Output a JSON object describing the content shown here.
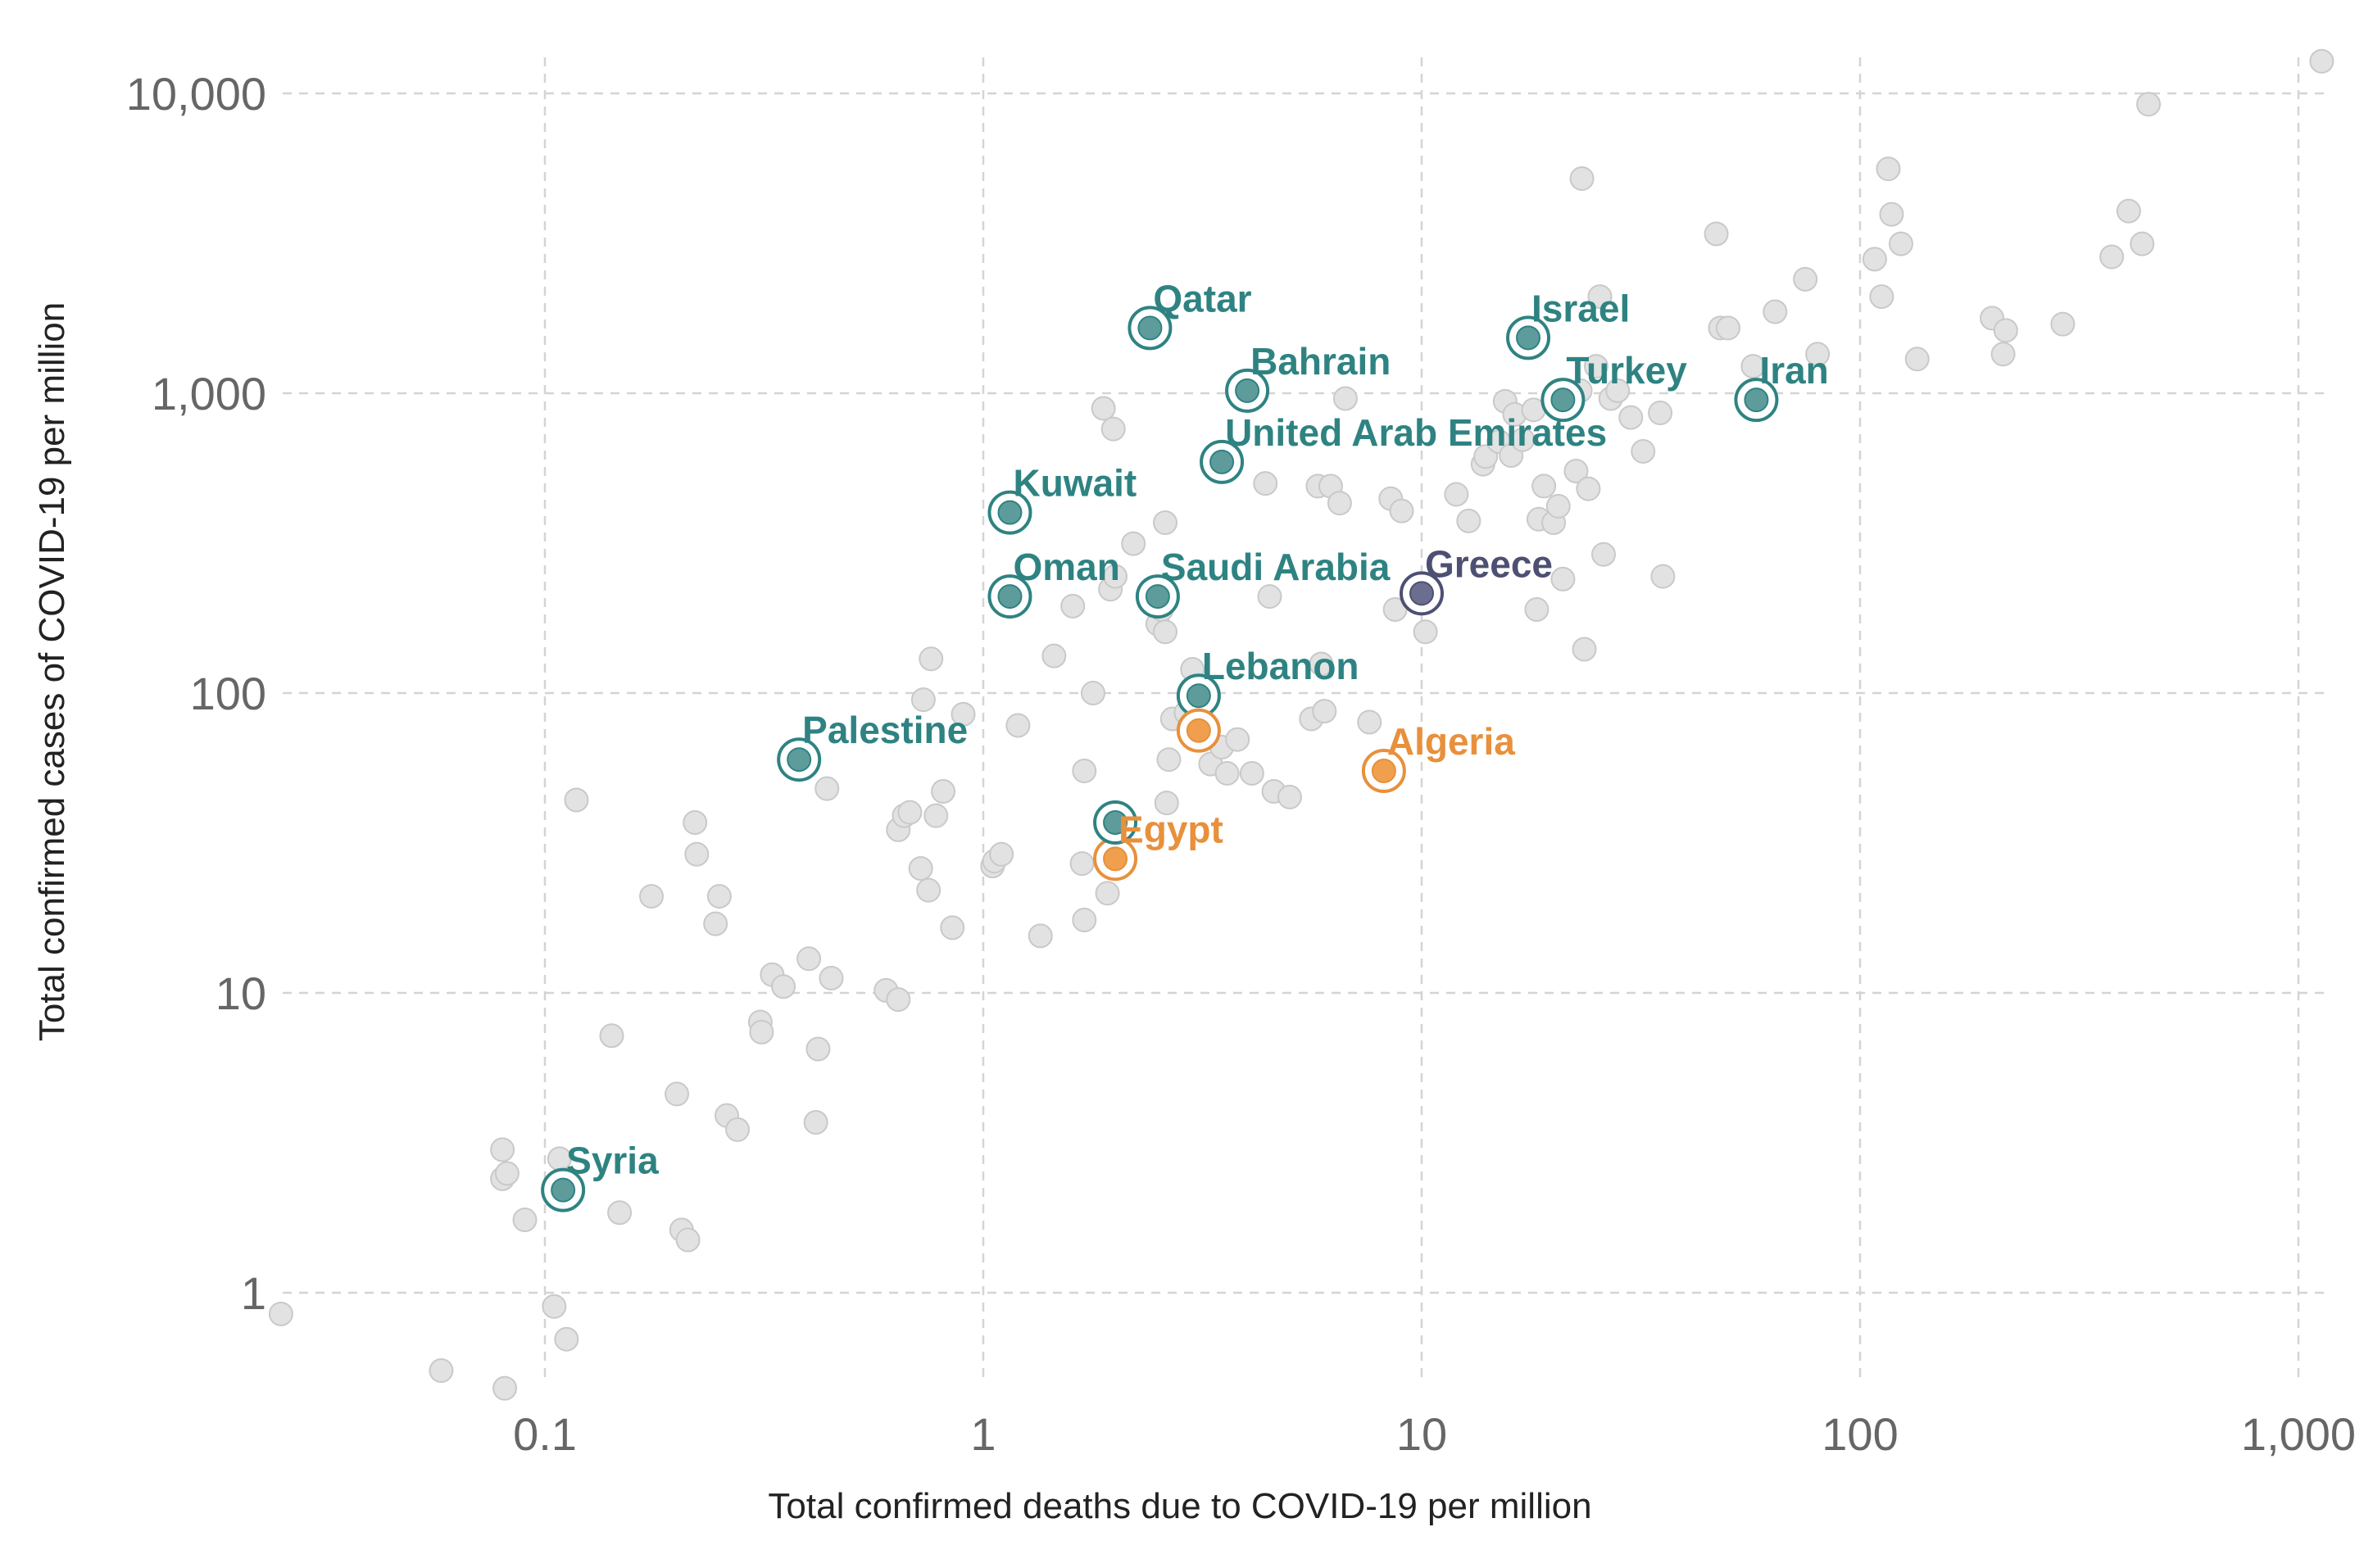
{
  "colors": {
    "mena": "#2e8382",
    "mena_fill": "#5d9c9b",
    "africa": "#e8903c",
    "africa_fill": "#ef9f4d",
    "europe": "#4d5072",
    "europe_fill": "#6b6e8e",
    "background_point": "#e2e2e2",
    "grid": "#d4d4d4"
  },
  "chart_data": {
    "type": "scatter",
    "title": "",
    "xlabel": "Total confirmed deaths due to COVID-19 per million",
    "ylabel": "Total confirmed cases of COVID-19 per million",
    "x_scale": "log",
    "y_scale": "log",
    "xlim": [
      0.025,
      1200
    ],
    "ylim": [
      0.45,
      14000
    ],
    "x_ticks": [
      0.1,
      1,
      10,
      100,
      1000
    ],
    "x_tick_labels": [
      "0.1",
      "1",
      "10",
      "100",
      "1,000"
    ],
    "y_ticks": [
      1,
      10,
      100,
      1000,
      10000
    ],
    "y_tick_labels": [
      "1",
      "10",
      "100",
      "1,000",
      "10,000"
    ],
    "grid": true,
    "highlighted": [
      {
        "label": "Qatar",
        "x": 2.4,
        "y": 1650,
        "group": "mena"
      },
      {
        "label": "Bahrain",
        "x": 4.0,
        "y": 1020,
        "group": "mena"
      },
      {
        "label": "Israel",
        "x": 17.5,
        "y": 1530,
        "group": "mena"
      },
      {
        "label": "Turkey",
        "x": 21,
        "y": 950,
        "group": "mena"
      },
      {
        "label": "Iran",
        "x": 58,
        "y": 950,
        "group": "mena"
      },
      {
        "label": "United Arab Emirates",
        "x": 3.5,
        "y": 590,
        "group": "mena"
      },
      {
        "label": "Kuwait",
        "x": 1.15,
        "y": 400,
        "group": "mena"
      },
      {
        "label": "Oman",
        "x": 1.15,
        "y": 210,
        "group": "mena"
      },
      {
        "label": "Saudi Arabia",
        "x": 2.5,
        "y": 210,
        "group": "mena"
      },
      {
        "label": "Greece",
        "x": 10,
        "y": 215,
        "group": "europe"
      },
      {
        "label": "Lebanon",
        "x": 3.1,
        "y": 98,
        "group": "mena"
      },
      {
        "label": "Palestine",
        "x": 0.38,
        "y": 60,
        "group": "mena"
      },
      {
        "label": "Algeria",
        "x": 8.2,
        "y": 55,
        "group": "africa"
      },
      {
        "label": "Egypt",
        "x": 2.0,
        "y": 28,
        "group": "africa"
      },
      {
        "label": "Syria",
        "x": 0.11,
        "y": 2.2,
        "group": "mena"
      },
      {
        "label": "",
        "x": 3.1,
        "y": 75,
        "group": "africa"
      },
      {
        "label": "",
        "x": 2.0,
        "y": 37,
        "group": "mena"
      }
    ],
    "background_points": [
      [
        0.025,
        0.85
      ],
      [
        0.058,
        0.55
      ],
      [
        0.081,
        0.48
      ],
      [
        0.08,
        3.0
      ],
      [
        0.08,
        2.4
      ],
      [
        0.082,
        2.5
      ],
      [
        0.09,
        1.75
      ],
      [
        0.105,
        0.9
      ],
      [
        0.108,
        2.8
      ],
      [
        0.112,
        0.7
      ],
      [
        0.118,
        44
      ],
      [
        0.142,
        7.2
      ],
      [
        0.148,
        1.85
      ],
      [
        0.175,
        21
      ],
      [
        0.2,
        4.6
      ],
      [
        0.205,
        1.62
      ],
      [
        0.212,
        1.5
      ],
      [
        0.22,
        37
      ],
      [
        0.222,
        29
      ],
      [
        0.245,
        17
      ],
      [
        0.25,
        21
      ],
      [
        0.26,
        3.9
      ],
      [
        0.275,
        3.5
      ],
      [
        0.31,
        8.0
      ],
      [
        0.312,
        7.4
      ],
      [
        0.33,
        11.5
      ],
      [
        0.35,
        10.5
      ],
      [
        0.4,
        13
      ],
      [
        0.415,
        3.7
      ],
      [
        0.42,
        6.5
      ],
      [
        0.44,
        48
      ],
      [
        0.45,
        11.2
      ],
      [
        0.6,
        10.2
      ],
      [
        0.64,
        9.5
      ],
      [
        0.64,
        35
      ],
      [
        0.66,
        39
      ],
      [
        0.68,
        40
      ],
      [
        0.72,
        26
      ],
      [
        0.73,
        95
      ],
      [
        0.75,
        22
      ],
      [
        0.76,
        130
      ],
      [
        0.78,
        39
      ],
      [
        0.81,
        47
      ],
      [
        0.85,
        16.5
      ],
      [
        0.9,
        85
      ],
      [
        1.05,
        26.5
      ],
      [
        1.06,
        27.5
      ],
      [
        1.1,
        29
      ],
      [
        1.2,
        78
      ],
      [
        1.35,
        15.5
      ],
      [
        1.45,
        133
      ],
      [
        1.6,
        195
      ],
      [
        1.68,
        27
      ],
      [
        1.7,
        17.5
      ],
      [
        1.7,
        55
      ],
      [
        1.78,
        100
      ],
      [
        1.88,
        890
      ],
      [
        1.92,
        21.5
      ],
      [
        1.95,
        222
      ],
      [
        1.98,
        760
      ],
      [
        2.0,
        245
      ],
      [
        2.2,
        315
      ],
      [
        2.45,
        225
      ],
      [
        2.5,
        170
      ],
      [
        2.55,
        190
      ],
      [
        2.6,
        160
      ],
      [
        2.6,
        370
      ],
      [
        2.62,
        43
      ],
      [
        2.65,
        60
      ],
      [
        2.7,
        82
      ],
      [
        2.9,
        86
      ],
      [
        3.0,
        120
      ],
      [
        3.3,
        58
      ],
      [
        3.5,
        66
      ],
      [
        3.6,
        54
      ],
      [
        3.8,
        70
      ],
      [
        4.1,
        54
      ],
      [
        4.4,
        500
      ],
      [
        4.5,
        210
      ],
      [
        4.6,
        47
      ],
      [
        5.0,
        45
      ],
      [
        5.6,
        82
      ],
      [
        5.8,
        490
      ],
      [
        5.9,
        125
      ],
      [
        6.0,
        87
      ],
      [
        6.2,
        490
      ],
      [
        6.5,
        430
      ],
      [
        6.7,
        960
      ],
      [
        7.6,
        80
      ],
      [
        8.5,
        445
      ],
      [
        8.7,
        190
      ],
      [
        9.0,
        405
      ],
      [
        10.2,
        160
      ],
      [
        12.0,
        460
      ],
      [
        12.8,
        375
      ],
      [
        13.8,
        580
      ],
      [
        14.0,
        615
      ],
      [
        15.0,
        690
      ],
      [
        15.5,
        940
      ],
      [
        16.0,
        620
      ],
      [
        16.3,
        850
      ],
      [
        17.0,
        700
      ],
      [
        18.0,
        880
      ],
      [
        18.3,
        190
      ],
      [
        18.5,
        380
      ],
      [
        19.0,
        490
      ],
      [
        20.0,
        370
      ],
      [
        20.5,
        420
      ],
      [
        21.0,
        240
      ],
      [
        21.5,
        970
      ],
      [
        22.5,
        550
      ],
      [
        23.0,
        1020
      ],
      [
        23.2,
        5200
      ],
      [
        23.5,
        140
      ],
      [
        24.0,
        480
      ],
      [
        25.0,
        1230
      ],
      [
        25.5,
        2100
      ],
      [
        26.0,
        290
      ],
      [
        27.0,
        960
      ],
      [
        28.0,
        1020
      ],
      [
        30.0,
        830
      ],
      [
        32.0,
        640
      ],
      [
        35.0,
        860
      ],
      [
        35.5,
        245
      ],
      [
        47.0,
        3400
      ],
      [
        48.0,
        1650
      ],
      [
        50.0,
        1650
      ],
      [
        57.0,
        1230
      ],
      [
        64.0,
        1870
      ],
      [
        75.0,
        2400
      ],
      [
        80.0,
        1350
      ],
      [
        108.0,
        2800
      ],
      [
        112.0,
        2100
      ],
      [
        116.0,
        5600
      ],
      [
        118.0,
        3950
      ],
      [
        124.0,
        3150
      ],
      [
        135.0,
        1300
      ],
      [
        200.0,
        1780
      ],
      [
        212.0,
        1350
      ],
      [
        215.0,
        1620
      ],
      [
        290.0,
        1700
      ],
      [
        375.0,
        2850
      ],
      [
        410.0,
        4050
      ],
      [
        440.0,
        3150
      ],
      [
        455.0,
        9200
      ],
      [
        1130.0,
        12800
      ]
    ]
  }
}
